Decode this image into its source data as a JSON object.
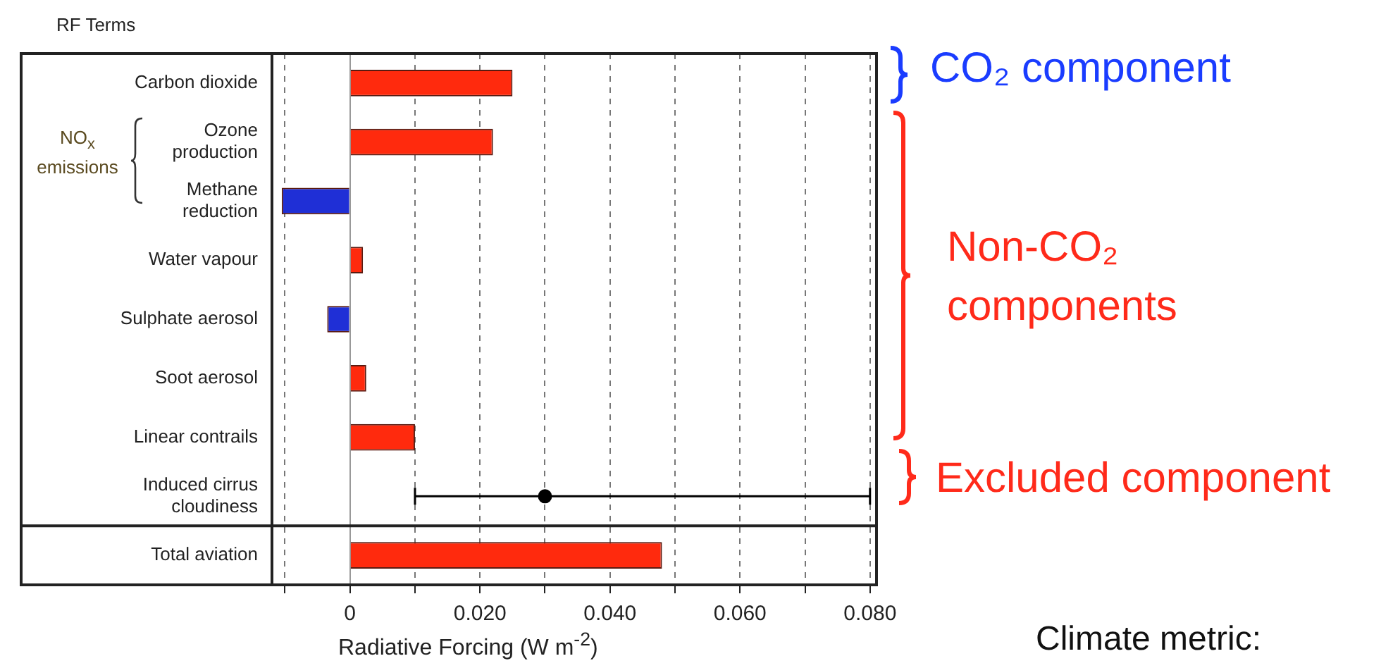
{
  "chart_data": {
    "type": "bar",
    "orientation": "horizontal",
    "xlabel": "Radiative Forcing (W m$^{-2}$)",
    "categories": [
      "Carbon dioxide",
      "Ozone production",
      "Methane reduction",
      "Water vapour",
      "Sulphate aerosol",
      "Soot aerosol",
      "Linear contrails",
      "Induced cirrus cloudiness",
      "Total aviation"
    ],
    "series": [
      {
        "colors": [
          "#ff2a0d",
          "#ff2a0d",
          "#1f2fd6",
          "#ff2a0d",
          "#1f2fd6",
          "#ff2a0d",
          "#ff2a0d",
          "#ff2a0d",
          "#ff2a0d"
        ],
        "values": [
          0.025,
          0.022,
          -0.0105,
          0.002,
          -0.0035,
          0.0025,
          0.01,
          null,
          0.048
        ]
      },
      {
        "type": "scatter",
        "color": "#000000",
        "values": [
          null,
          null,
          null,
          null,
          null,
          null,
          null,
          0.03,
          null
        ],
        "errors": [
          null,
          null,
          null,
          null,
          null,
          null,
          null,
          [
            0.01,
            0.08
          ],
          null
        ]
      }
    ],
    "xlim": [
      -0.012,
      0.081
    ],
    "xticks": [
      {
        "value": -0.01,
        "label": null
      },
      0,
      {
        "value": 0.01,
        "label": null
      },
      {
        "value": 0.02,
        "label": "0.020"
      },
      {
        "value": 0.03,
        "label": null
      },
      {
        "value": 0.04,
        "label": "0.040"
      },
      {
        "value": 0.05,
        "label": null
      },
      {
        "value": 0.06,
        "label": "0.060"
      },
      {
        "value": 0.07,
        "label": null
      },
      {
        "value": 0.08,
        "label": "0.080"
      }
    ],
    "grid": "x",
    "line_style": "dashed",
    "marker": "circle",
    "legend": false,
    "annotations": [
      "RF Terms",
      "NO$_{x}$ emissions",
      "CO₂ component",
      "Non-CO₂ components",
      "Excluded component",
      "Climate metric:"
    ]
  }
}
